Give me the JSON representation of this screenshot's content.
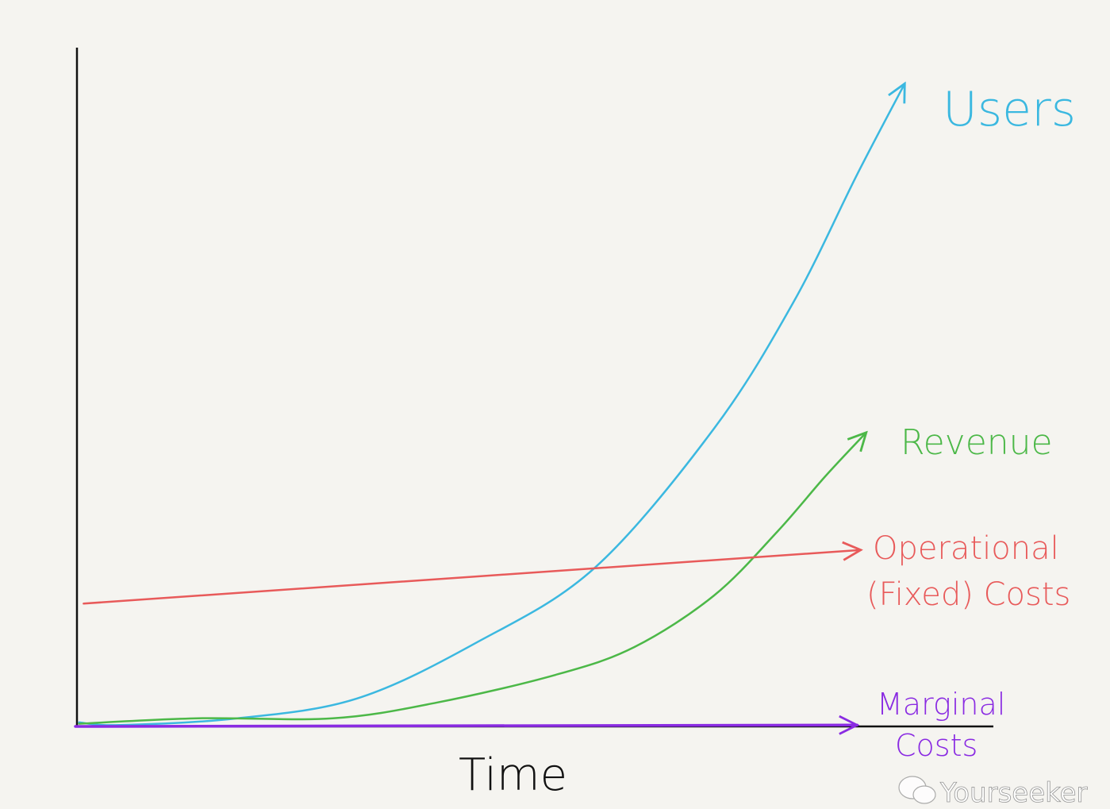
{
  "chart_data": {
    "type": "line",
    "title": "",
    "xlabel": "Time",
    "ylabel": "",
    "xlim": [
      0,
      100
    ],
    "ylim": [
      0,
      100
    ],
    "grid": false,
    "legend": "inline labels at line ends",
    "series": [
      {
        "name": "Users",
        "color": "#3bb8e0",
        "x": [
          0.4,
          4.8,
          17.7,
          30.7,
          43.7,
          56.7,
          69.7,
          78.4,
          85.3,
          90.5
        ],
        "y": [
          0.6,
          0.2,
          1.2,
          4.1,
          12.3,
          23.4,
          43.9,
          62.6,
          81.3,
          94.7
        ]
      },
      {
        "name": "Revenue",
        "color": "#4cb848",
        "x": [
          0.4,
          13.4,
          28.1,
          39.4,
          52.4,
          61.0,
          69.7,
          76.6,
          81.8,
          86.3
        ],
        "y": [
          0.4,
          1.2,
          1.2,
          3.5,
          7.6,
          11.7,
          19.3,
          28.7,
          36.8,
          43.3
        ]
      },
      {
        "name": "Operational (Fixed) Costs",
        "label_lines": [
          "Operational",
          "(Fixed) Costs"
        ],
        "color": "#e85a5a",
        "x": [
          0.9,
          85.7
        ],
        "y": [
          18.1,
          26.0
        ]
      },
      {
        "name": "Marginal Costs",
        "label_lines": [
          "Marginal",
          "Costs"
        ],
        "color": "#8a2be2",
        "x": [
          0,
          85.3
        ],
        "y": [
          0,
          0.2
        ]
      }
    ]
  },
  "watermark": "Yourseeker"
}
